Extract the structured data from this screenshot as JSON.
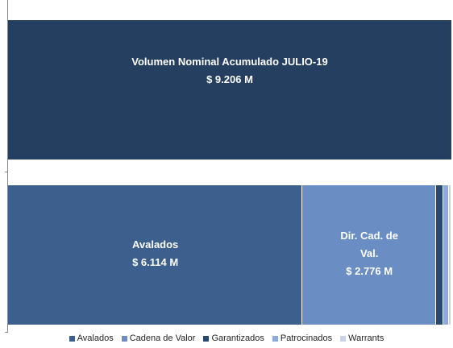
{
  "chart_data": {
    "type": "bar",
    "orientation": "horizontal",
    "stacked": true,
    "total": {
      "label": "Volumen Nominal Acumulado JULIO-19",
      "value": 9206,
      "value_label": "$ 9.206 M",
      "color": "#253f60"
    },
    "xlim": [
      0,
      9206
    ],
    "series": [
      {
        "name": "Avalados",
        "label": "Avalados",
        "color": "#3c5f8e",
        "values": [
          6114
        ],
        "value_labels": [
          "$ 6.114 M"
        ]
      },
      {
        "name": "Cadena de Valor",
        "label": "Dir. Cad. de Val.",
        "color": "#6a8ec4",
        "values": [
          2776
        ],
        "value_labels": [
          "$ 2.776 M"
        ]
      },
      {
        "name": "Garantizados",
        "color": "#2a4870",
        "values": [
          150
        ]
      },
      {
        "name": "Patrocinados",
        "color": "#8eaadb",
        "values": [
          110
        ]
      },
      {
        "name": "Warrants",
        "color": "#c9d3e8",
        "values": [
          56
        ]
      }
    ]
  }
}
